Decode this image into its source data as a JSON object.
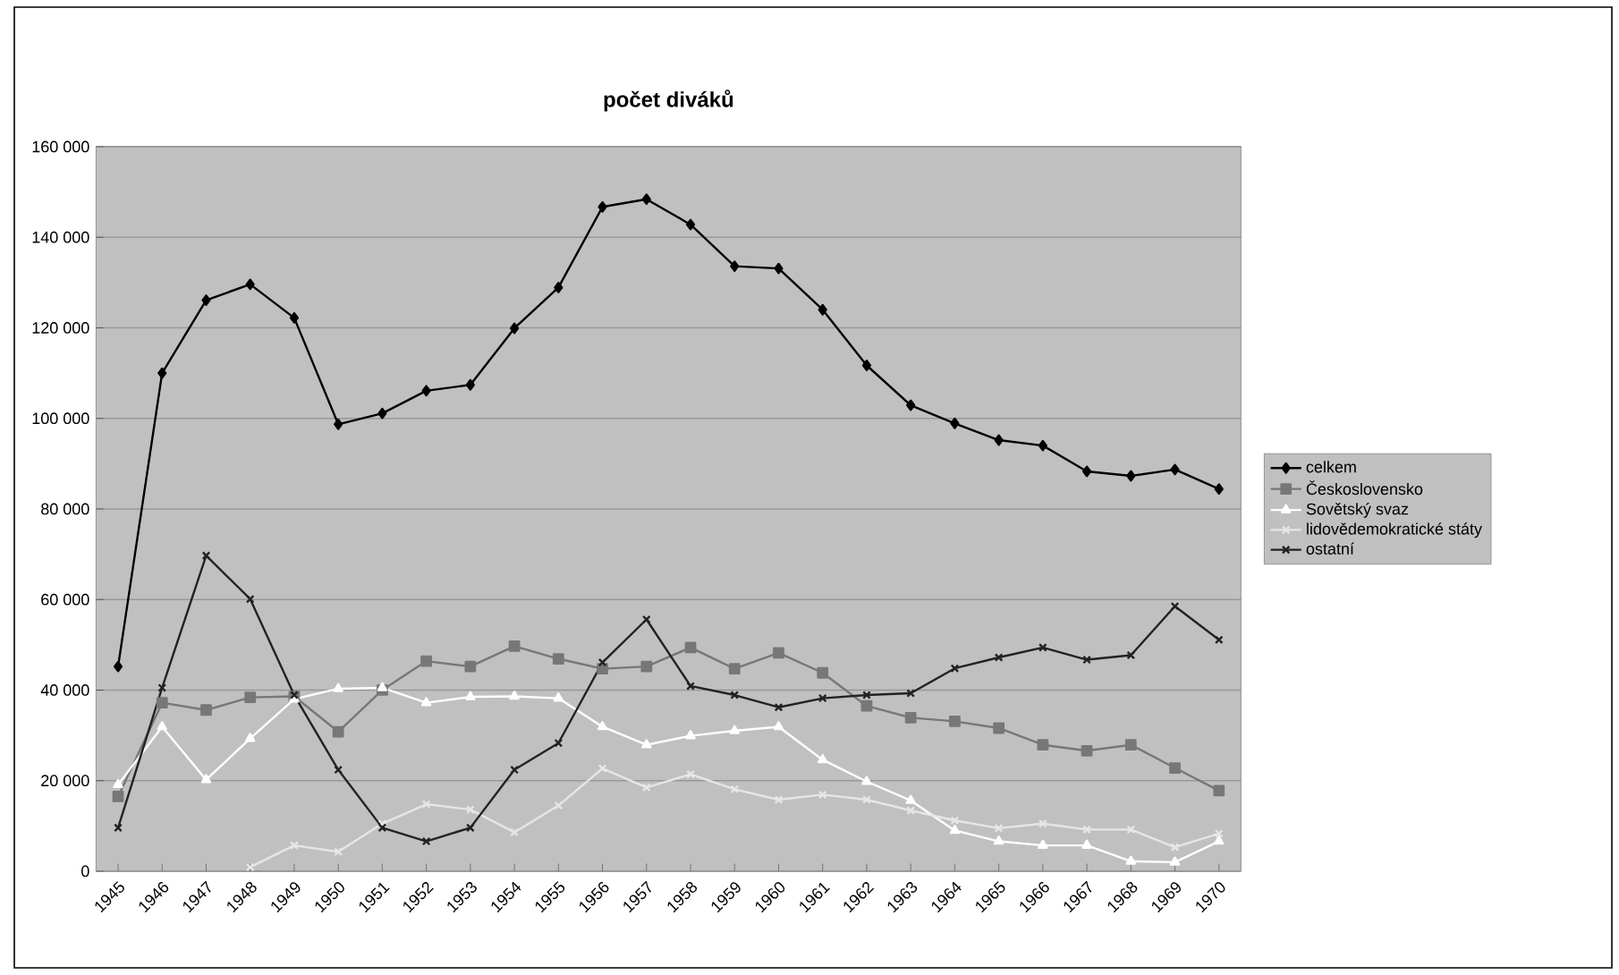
{
  "chart_data": {
    "type": "line",
    "title": "počet diváků",
    "categories": [
      "1945",
      "1946",
      "1947",
      "1948",
      "1949",
      "1950",
      "1951",
      "1952",
      "1953",
      "1954",
      "1955",
      "1956",
      "1957",
      "1958",
      "1959",
      "1960",
      "1961",
      "1962",
      "1963",
      "1964",
      "1965",
      "1966",
      "1967",
      "1968",
      "1969",
      "1970"
    ],
    "series": [
      {
        "name": "celkem",
        "color": "#000000",
        "marker": "diamond",
        "values": [
          45200,
          110000,
          126100,
          129600,
          122200,
          98700,
          101100,
          106100,
          107400,
          119900,
          128900,
          146700,
          148400,
          142800,
          133600,
          133100,
          124000,
          111700,
          102900,
          98900,
          95200,
          94000,
          88300,
          87300,
          88700,
          84400
        ]
      },
      {
        "name": "Československo",
        "color": "#777777",
        "marker": "square",
        "values": [
          16500,
          37200,
          35600,
          38400,
          38600,
          30800,
          40000,
          46400,
          45200,
          49700,
          46900,
          44700,
          45200,
          49400,
          44700,
          48200,
          43800,
          36500,
          33900,
          33100,
          31600,
          27900,
          26600,
          27900,
          22800,
          17800
        ]
      },
      {
        "name": "Sovětský svaz",
        "color": "#ffffff",
        "marker": "triangle",
        "values": [
          19100,
          31900,
          20200,
          29300,
          38000,
          40300,
          40500,
          37200,
          38500,
          38600,
          38200,
          31900,
          27900,
          29900,
          31000,
          31900,
          24600,
          19800,
          15600,
          9000,
          6600,
          5700,
          5700,
          2200,
          2000,
          6600
        ]
      },
      {
        "name": "lidovědemokratické státy",
        "color": "#e6e6e6",
        "marker": "cross",
        "values": [
          null,
          null,
          null,
          900,
          5700,
          4300,
          10500,
          14800,
          13600,
          8600,
          14500,
          22700,
          18500,
          21400,
          18100,
          15800,
          16900,
          15800,
          13400,
          11200,
          9500,
          10500,
          9200,
          9200,
          5300,
          8300
        ]
      },
      {
        "name": "ostatní",
        "color": "#222222",
        "marker": "cross",
        "values": [
          9600,
          40500,
          69700,
          60100,
          38900,
          22400,
          9600,
          6600,
          9600,
          22400,
          28300,
          46100,
          55600,
          40900,
          38900,
          36200,
          38200,
          38900,
          39300,
          44800,
          47200,
          49400,
          46700,
          47700,
          58500,
          51100
        ]
      }
    ],
    "ylim": [
      0,
      160000
    ],
    "yticks": [
      {
        "value": 0,
        "label": "0"
      },
      {
        "value": 20000,
        "label": "20 000"
      },
      {
        "value": 40000,
        "label": "40 000"
      },
      {
        "value": 60000,
        "label": "60 000"
      },
      {
        "value": 80000,
        "label": "80 000"
      },
      {
        "value": 100000,
        "label": "100 000"
      },
      {
        "value": 120000,
        "label": "120 000"
      },
      {
        "value": 140000,
        "label": "140 000"
      },
      {
        "value": 160000,
        "label": "160 000"
      }
    ],
    "grid": "y",
    "legend": "right",
    "line_style": "solid"
  }
}
